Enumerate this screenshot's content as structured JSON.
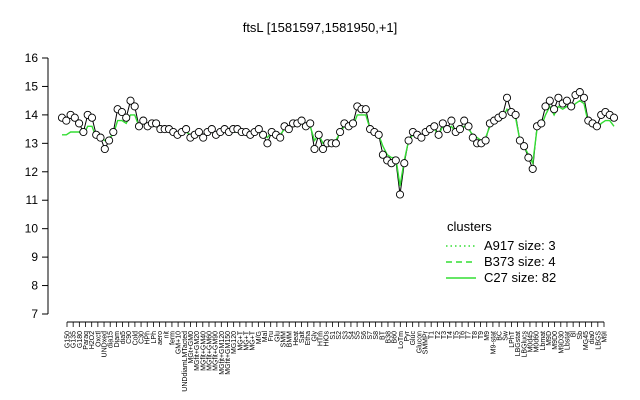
{
  "chart_data": {
    "type": "line",
    "title": "ftsL [1581597,1581950,+1]",
    "xlabel": "",
    "ylabel": "",
    "ylim": [
      7,
      16
    ],
    "y_ticks": [
      7,
      8,
      9,
      10,
      11,
      12,
      13,
      14,
      15,
      16
    ],
    "grid": false,
    "legend_title": "clusters",
    "legend_position": "right",
    "x_tick_labels": [
      "G150",
      "G135",
      "G180",
      "Paraq",
      "H2O2",
      "Oxctl",
      "UNDxed",
      "dia15",
      "Diam",
      "dia5",
      "C90",
      "Cold",
      "C30",
      "HPh",
      "LPh",
      "aero",
      "nit",
      "ferm",
      "GM+10",
      "UNDdiamLMTacted",
      "MGt+GM0",
      "MGfit+GM20",
      "MGfit+GM40",
      "MGfit+GM60",
      "MGfit+GM90",
      "MGfit+GM120",
      "MGfit+GM150",
      "MG120",
      "MG+T",
      "MG+T",
      "MG+T",
      "M/G",
      "Mal",
      "Fru",
      "Glu",
      "SMM",
      "BMM",
      "Heat",
      "Salt",
      "Etha",
      "Gly",
      "HTm",
      "HiOs",
      "S1",
      "S2",
      "S3",
      "S4",
      "S5",
      "S6",
      "S7",
      "S8",
      "BT",
      "B38",
      "B60",
      "LoTm",
      "Pyr",
      "Gluc",
      "Glucon",
      "SMMPr",
      "T1",
      "T2",
      "T3",
      "T4",
      "T5",
      "T6",
      "T7",
      "T8",
      "T9",
      "M9",
      "M9-stat",
      "BC",
      "Sw",
      "LPhT",
      "LBGstat",
      "LBGlucs",
      "M0d45",
      "M0d60",
      "Lbmat",
      "M9D",
      "M9D0",
      "M9D30",
      "Lbstat",
      "Bl",
      "Sb",
      "MG45",
      "dia0",
      "LBGS",
      "M9I"
    ],
    "x_tick_positions_shown": [
      "G150",
      "G135",
      "G180",
      "Paraq",
      "H2O2",
      "Oxctl",
      "UNDxed",
      "dia15",
      "Diam",
      "dia5",
      "C90",
      "Cold",
      "C30",
      "HPh",
      "LPh",
      "aero",
      "nit",
      "ferm",
      "GM+10",
      "UNDdiamLMTacted",
      "MGt+GM0",
      "MGfit+GM20",
      "MGfit+GM40",
      "MGfit+GM60",
      "MGfit+GM90",
      "MGfit+GM120",
      "MGfit+GM150",
      "MG120",
      "MG+T",
      "MG+T",
      "MG+T",
      "M/G",
      "Mal",
      "Fru",
      "Glu",
      "SMM",
      "BMM",
      "Heat",
      "Salt",
      "Etha",
      "Gly",
      "HTm",
      "HiOs",
      "S1",
      "S2",
      "S3",
      "S4",
      "S5",
      "S6",
      "S7",
      "S8",
      "BT",
      "B38",
      "B60",
      "LoTm",
      "Pyr",
      "Gluc",
      "Glucon",
      "SMMPr",
      "T1",
      "T2",
      "T3",
      "T4",
      "T5",
      "T6",
      "T7",
      "T8",
      "T9",
      "M9",
      "M9-stat",
      "BC",
      "Sw",
      "LPhT",
      "LBGstat",
      "LBGlucs",
      "M0d45",
      "M0d60",
      "Lbmat",
      "M9D",
      "M9D0",
      "M9D30",
      "Lbstat",
      "Bl",
      "Sb",
      "MG45",
      "dia0",
      "LBGS",
      "M9I"
    ],
    "points_y": [
      13.9,
      13.8,
      14.0,
      13.9,
      13.7,
      13.4,
      14.0,
      13.9,
      13.3,
      13.2,
      12.8,
      13.1,
      13.4,
      14.2,
      14.1,
      13.9,
      14.5,
      14.3,
      13.6,
      13.8,
      13.6,
      13.7,
      13.7,
      13.5,
      13.5,
      13.5,
      13.4,
      13.3,
      13.4,
      13.5,
      13.2,
      13.3,
      13.4,
      13.2,
      13.4,
      13.5,
      13.3,
      13.4,
      13.5,
      13.4,
      13.5,
      13.5,
      13.4,
      13.4,
      13.3,
      13.4,
      13.5,
      13.3,
      13.0,
      13.4,
      13.3,
      13.2,
      13.6,
      13.5,
      13.7,
      13.7,
      13.8,
      13.6,
      13.7,
      12.8,
      13.3,
      12.8,
      13.0,
      13.0,
      13.0,
      13.4,
      13.7,
      13.6,
      13.7,
      14.3,
      14.2,
      14.2,
      13.5,
      13.4,
      13.3,
      12.6,
      12.4,
      12.3,
      12.4,
      11.2,
      12.3,
      13.1,
      13.4,
      13.3,
      13.2,
      13.4,
      13.5,
      13.6,
      13.3,
      13.7,
      13.5,
      13.8,
      13.4,
      13.5,
      13.8,
      13.6,
      13.2,
      13.0,
      13.0,
      13.1,
      13.7,
      13.8,
      13.9,
      14.0,
      14.6,
      14.1,
      14.0,
      13.1,
      12.9,
      12.5,
      12.1,
      13.6,
      13.7,
      14.3,
      14.5,
      14.2,
      14.6,
      14.4,
      14.5,
      14.3,
      14.7,
      14.8,
      14.6,
      13.8,
      13.7,
      13.6,
      14.0,
      14.1,
      14.0,
      13.9
    ],
    "series": [
      {
        "name": "A917 size: 3",
        "style": "dotted",
        "color": "#2ecc2e"
      },
      {
        "name": "B373 size: 4",
        "style": "dashed",
        "color": "#2ecc2e"
      },
      {
        "name": "C27 size: 82",
        "style": "solid",
        "color": "#33dd33",
        "values": [
          13.3,
          13.3,
          13.4,
          13.4,
          13.4,
          13.3,
          13.6,
          13.6,
          13.2,
          13.2,
          13.1,
          13.2,
          13.3,
          13.8,
          13.8,
          13.7,
          14.0,
          14.0,
          13.6,
          13.7,
          13.6,
          13.6,
          13.6,
          13.5,
          13.5,
          13.5,
          13.4,
          13.3,
          13.4,
          13.4,
          13.3,
          13.3,
          13.4,
          13.3,
          13.4,
          13.4,
          13.3,
          13.4,
          13.4,
          13.4,
          13.4,
          13.4,
          13.4,
          13.4,
          13.3,
          13.4,
          13.4,
          13.3,
          13.2,
          13.4,
          13.3,
          13.3,
          13.5,
          13.5,
          13.6,
          13.6,
          13.7,
          13.6,
          13.6,
          13.1,
          13.3,
          13.0,
          13.1,
          13.1,
          13.1,
          13.4,
          13.6,
          13.5,
          13.6,
          14.0,
          14.0,
          14.0,
          13.5,
          13.4,
          13.3,
          12.9,
          12.6,
          12.5,
          12.5,
          11.5,
          12.4,
          13.1,
          13.3,
          13.3,
          13.2,
          13.4,
          13.5,
          13.5,
          13.3,
          13.6,
          13.5,
          13.6,
          13.4,
          13.5,
          13.6,
          13.5,
          13.3,
          13.2,
          13.1,
          13.2,
          13.6,
          13.7,
          13.8,
          13.9,
          14.2,
          14.0,
          13.9,
          13.1,
          12.9,
          12.6,
          12.3,
          13.5,
          13.6,
          14.0,
          14.3,
          14.0,
          14.3,
          14.2,
          14.3,
          14.2,
          14.4,
          14.5,
          14.4,
          13.7,
          13.6,
          13.5,
          13.7,
          13.8,
          13.8,
          13.6
        ]
      }
    ]
  }
}
